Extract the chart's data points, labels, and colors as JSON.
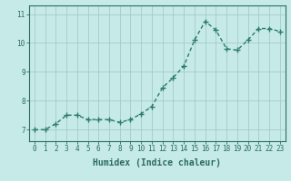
{
  "x": [
    0,
    1,
    2,
    3,
    4,
    5,
    6,
    7,
    8,
    9,
    10,
    11,
    12,
    13,
    14,
    15,
    16,
    17,
    18,
    19,
    20,
    21,
    22,
    23
  ],
  "y": [
    7.0,
    7.0,
    7.2,
    7.5,
    7.5,
    7.35,
    7.35,
    7.35,
    7.25,
    7.35,
    7.55,
    7.8,
    8.45,
    8.8,
    9.2,
    10.1,
    10.75,
    10.45,
    9.8,
    9.75,
    10.1,
    10.5,
    10.5,
    10.4
  ],
  "line_color": "#2d7a6e",
  "marker": "+",
  "marker_size": 4,
  "bg_color": "#c5eae8",
  "grid_color": "#a8cac8",
  "axis_color": "#2d6b60",
  "xlabel": "Humidex (Indice chaleur)",
  "xlabel_fontsize": 7,
  "yticks": [
    7,
    8,
    9,
    10,
    11
  ],
  "ylim": [
    6.6,
    11.3
  ],
  "xlim": [
    -0.5,
    23.5
  ],
  "xticks": [
    0,
    1,
    2,
    3,
    4,
    5,
    6,
    7,
    8,
    9,
    10,
    11,
    12,
    13,
    14,
    15,
    16,
    17,
    18,
    19,
    20,
    21,
    22,
    23
  ],
  "tick_fontsize": 5.5,
  "line_width": 1.0
}
